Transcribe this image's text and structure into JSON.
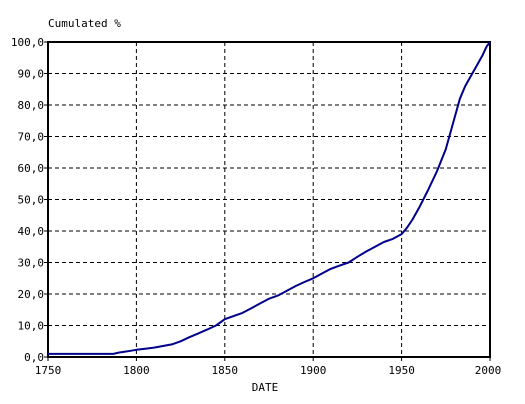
{
  "chart_data": {
    "type": "line",
    "title": "Cumulated %",
    "xlabel": "DATE",
    "ylabel": "",
    "xlim": [
      1750,
      2000
    ],
    "ylim": [
      0,
      100
    ],
    "grid": true,
    "x_ticks": [
      "1750",
      "1800",
      "1850",
      "1900",
      "1950",
      "2000"
    ],
    "y_ticks": [
      "0,0",
      "10,0",
      "20,0",
      "30,0",
      "40,0",
      "50,0",
      "60,0",
      "70,0",
      "80,0",
      "90,0",
      "100,0"
    ],
    "colors": {
      "line": "#00008b",
      "grid": "#000000",
      "frame": "#000000"
    },
    "series": [
      {
        "x": [
          1750,
          1760,
          1770,
          1780,
          1787,
          1790,
          1795,
          1800,
          1805,
          1810,
          1815,
          1820,
          1825,
          1830,
          1835,
          1840,
          1845,
          1850,
          1855,
          1860,
          1865,
          1870,
          1875,
          1880,
          1885,
          1890,
          1895,
          1900,
          1905,
          1910,
          1915,
          1920,
          1925,
          1930,
          1935,
          1940,
          1945,
          1950,
          1953,
          1956,
          1960,
          1965,
          1970,
          1975,
          1980,
          1983,
          1986,
          1990,
          1993,
          1996,
          1998,
          2000
        ],
        "y": [
          1.0,
          1.0,
          1.0,
          1.0,
          1.0,
          1.4,
          1.8,
          2.3,
          2.6,
          3.0,
          3.5,
          4.0,
          5.0,
          6.3,
          7.5,
          8.7,
          10.0,
          12.0,
          13.0,
          14.0,
          15.5,
          17.0,
          18.5,
          19.5,
          21.0,
          22.5,
          23.8,
          25.0,
          26.5,
          28.0,
          29.0,
          30.0,
          31.8,
          33.5,
          35.0,
          36.5,
          37.5,
          39.0,
          41.0,
          43.5,
          47.5,
          53.0,
          59.0,
          66.0,
          76.0,
          82.0,
          86.0,
          90.0,
          93.0,
          96.0,
          98.5,
          100.0
        ]
      }
    ]
  }
}
